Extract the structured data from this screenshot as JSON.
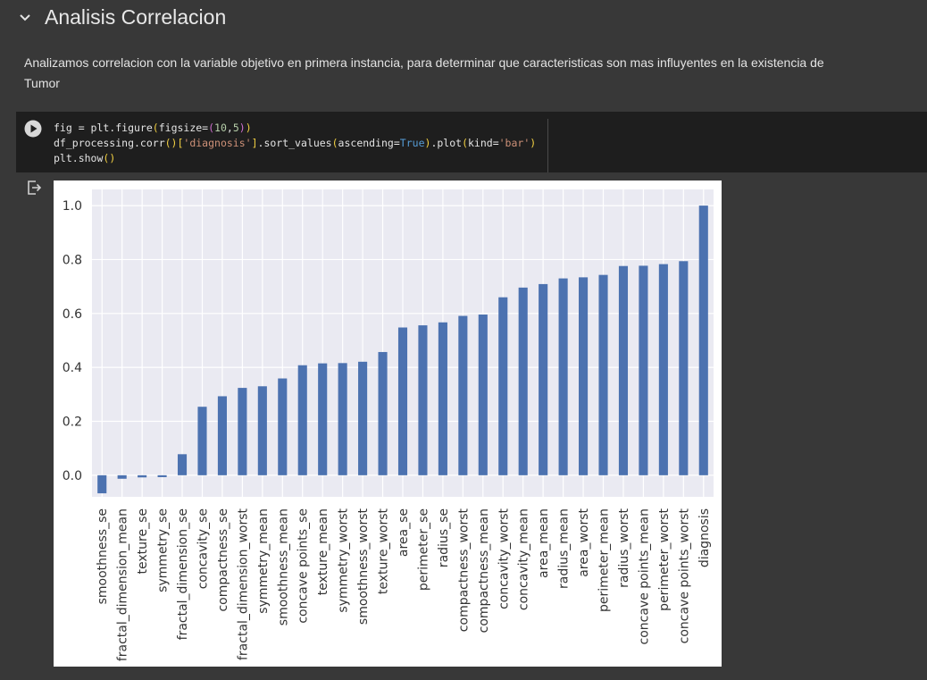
{
  "section": {
    "title": "Analisis Correlacion",
    "description": "Analizamos correlacion con la variable objetivo en primera instancia, para determinar que caracteristicas son mas influyentes en la existencia de Tumor"
  },
  "code_lines": [
    "fig = plt.figure(figsize=(10,5))",
    "df_processing.corr()['diagnosis'].sort_values(ascending=True).plot(kind='bar')",
    "plt.show()"
  ],
  "colors": {
    "bar": "#4c72b0",
    "plot_bg": "#eaeaf2",
    "grid": "#ffffff"
  },
  "chart_data": {
    "type": "bar",
    "title": "",
    "xlabel": "",
    "ylabel": "",
    "ylim": [
      -0.08,
      1.06
    ],
    "yticks": [
      0.0,
      0.2,
      0.4,
      0.6,
      0.8,
      1.0
    ],
    "ytick_labels": [
      "0.0",
      "0.2",
      "0.4",
      "0.6",
      "0.8",
      "1.0"
    ],
    "grid": true,
    "categories": [
      "smoothness_se",
      "fractal_dimension_mean",
      "texture_se",
      "symmetry_se",
      "fractal_dimension_se",
      "concavity_se",
      "compactness_se",
      "fractal_dimension_worst",
      "symmetry_mean",
      "smoothness_mean",
      "concave points_se",
      "texture_mean",
      "symmetry_worst",
      "smoothness_worst",
      "texture_worst",
      "area_se",
      "perimeter_se",
      "radius_se",
      "compactness_worst",
      "compactness_mean",
      "concavity_worst",
      "concavity_mean",
      "area_mean",
      "radius_mean",
      "area_worst",
      "perimeter_mean",
      "radius_worst",
      "concave points_mean",
      "perimeter_worst",
      "concave points_worst",
      "diagnosis"
    ],
    "values": [
      -0.067,
      -0.013,
      -0.008,
      -0.007,
      0.078,
      0.254,
      0.293,
      0.324,
      0.33,
      0.359,
      0.408,
      0.415,
      0.416,
      0.421,
      0.457,
      0.548,
      0.556,
      0.567,
      0.591,
      0.596,
      0.66,
      0.696,
      0.709,
      0.73,
      0.734,
      0.743,
      0.776,
      0.777,
      0.783,
      0.794,
      1.0
    ]
  }
}
